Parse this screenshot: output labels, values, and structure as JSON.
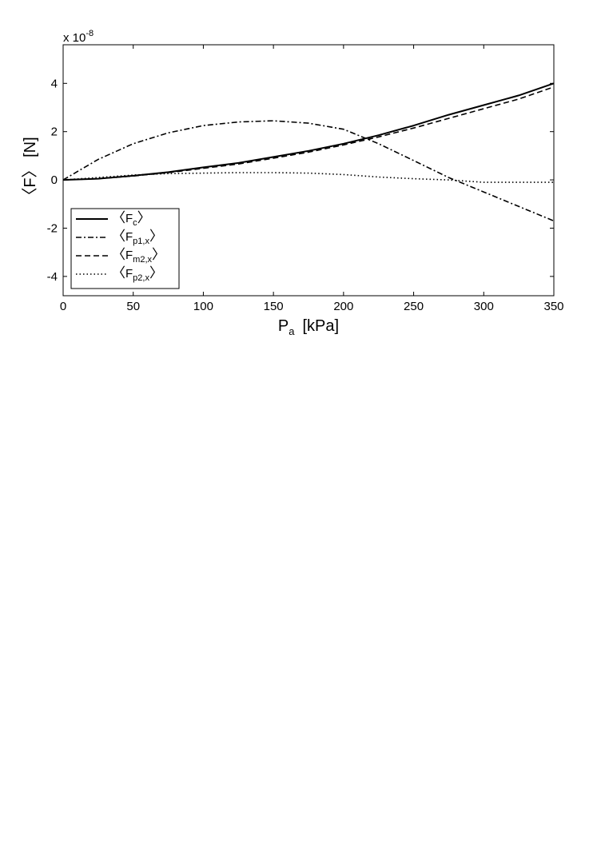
{
  "chart_data": {
    "type": "line",
    "xlabel_main": "P",
    "xlabel_sub": "a",
    "xlabel_unit": "[kPa]",
    "ylabel": "〈F〉 [N]",
    "y_exponent_prefix": "x 10",
    "y_exponent": "-8",
    "xlim": [
      0,
      350
    ],
    "ylim": [
      -4.8,
      5.6
    ],
    "xticks": [
      0,
      50,
      100,
      150,
      200,
      250,
      300,
      350
    ],
    "yticks": [
      -4,
      -2,
      0,
      2,
      4
    ],
    "grid": false,
    "legend_position": "lower-left",
    "series": [
      {
        "name": "〈F_c〉",
        "main": "F",
        "sub": "c",
        "style": "solid",
        "x": [
          0,
          25,
          50,
          75,
          100,
          125,
          150,
          175,
          200,
          225,
          250,
          275,
          300,
          325,
          350
        ],
        "y": [
          0,
          0.05,
          0.17,
          0.32,
          0.52,
          0.7,
          0.95,
          1.2,
          1.5,
          1.85,
          2.25,
          2.7,
          3.1,
          3.5,
          4.0
        ]
      },
      {
        "name": "〈F_p1,x〉",
        "main": "F",
        "sub": "p1,x",
        "style": "dashdot",
        "x": [
          0,
          25,
          50,
          75,
          100,
          125,
          150,
          175,
          200,
          225,
          250,
          275,
          300,
          325,
          350
        ],
        "y": [
          0,
          0.85,
          1.5,
          1.95,
          2.25,
          2.4,
          2.45,
          2.35,
          2.1,
          1.5,
          0.8,
          0.1,
          -0.5,
          -1.1,
          -1.7
        ]
      },
      {
        "name": "〈F_m2,x〉",
        "main": "F",
        "sub": "m2,x",
        "style": "dashed",
        "x": [
          0,
          25,
          50,
          75,
          100,
          125,
          150,
          175,
          200,
          225,
          250,
          275,
          300,
          325,
          350
        ],
        "y": [
          0,
          0.05,
          0.16,
          0.3,
          0.48,
          0.66,
          0.9,
          1.15,
          1.45,
          1.78,
          2.15,
          2.55,
          2.95,
          3.35,
          3.85
        ]
      },
      {
        "name": "〈F_p2,x〉",
        "main": "F",
        "sub": "p2,x",
        "style": "dotted",
        "x": [
          0,
          25,
          50,
          75,
          100,
          125,
          150,
          175,
          200,
          225,
          250,
          275,
          300,
          325,
          350
        ],
        "y": [
          0,
          0.1,
          0.2,
          0.26,
          0.28,
          0.3,
          0.3,
          0.28,
          0.22,
          0.12,
          0.05,
          0.0,
          -0.1,
          -0.1,
          -0.1
        ]
      }
    ]
  }
}
